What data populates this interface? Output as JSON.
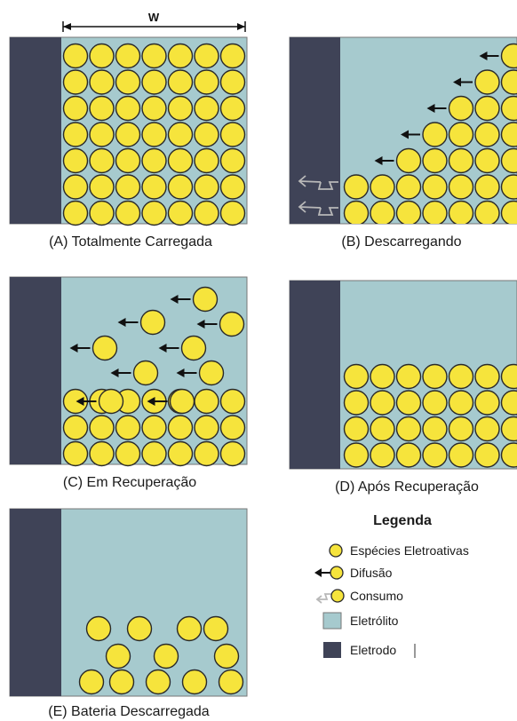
{
  "width_marker": "W",
  "colors": {
    "electrolyte": "#a6cace",
    "electrode": "#3f4357",
    "particle_fill": "#f6e43c",
    "particle_stroke": "#2a2a2a",
    "arrow": "#111111",
    "consumption_arrow": "#b8b8b8"
  },
  "panels": [
    {
      "id": "A",
      "caption": "(A) Totalmente Carregada"
    },
    {
      "id": "B",
      "caption": "(B) Descarregando"
    },
    {
      "id": "C",
      "caption": "(C) Em Recuperação"
    },
    {
      "id": "D",
      "caption": "(D) Após Recuperação"
    },
    {
      "id": "E",
      "caption": "(E) Bateria Descarregada"
    }
  ],
  "legend": {
    "title": "Legenda",
    "items": [
      {
        "symbol": "particle",
        "label": "Espécies Eletroativas"
      },
      {
        "symbol": "diffusion",
        "label": "Difusão"
      },
      {
        "symbol": "consumption",
        "label": "Consumo"
      },
      {
        "symbol": "electrolyte",
        "label": "Eletrólito"
      },
      {
        "symbol": "electrode",
        "label": "Eletrodo"
      }
    ]
  }
}
